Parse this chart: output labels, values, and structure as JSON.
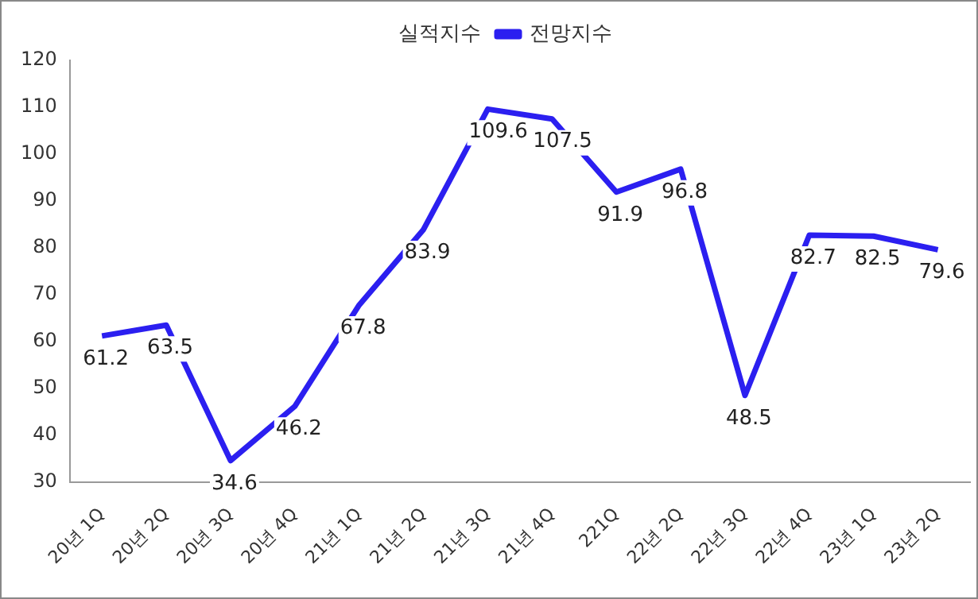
{
  "chart_data": {
    "type": "line",
    "categories": [
      "20년 1Q",
      "20년 2Q",
      "20년 3Q",
      "20년 4Q",
      "21년 1Q",
      "21년 2Q",
      "21년 3Q",
      "21년 4Q",
      "221Q",
      "22년 2Q",
      "22년 3Q",
      "22년 4Q",
      "23년 1Q",
      "23년 2Q"
    ],
    "series": [
      {
        "name": "실적지수",
        "values": [
          null,
          null,
          null,
          null,
          null,
          null,
          null,
          null,
          null,
          null,
          null,
          null,
          null,
          null
        ]
      },
      {
        "name": "전망지수",
        "color": "#2b1ff0",
        "values": [
          61.2,
          63.5,
          34.6,
          46.2,
          67.8,
          83.9,
          109.6,
          107.5,
          91.9,
          96.8,
          48.5,
          82.7,
          82.5,
          79.6
        ]
      }
    ],
    "ylim": [
      30,
      120
    ],
    "yticks": [
      30,
      40,
      50,
      60,
      70,
      80,
      90,
      100,
      110,
      120
    ],
    "grid": false,
    "legend": "top",
    "marker": "none",
    "line_style": "solid",
    "data_labels": true
  }
}
